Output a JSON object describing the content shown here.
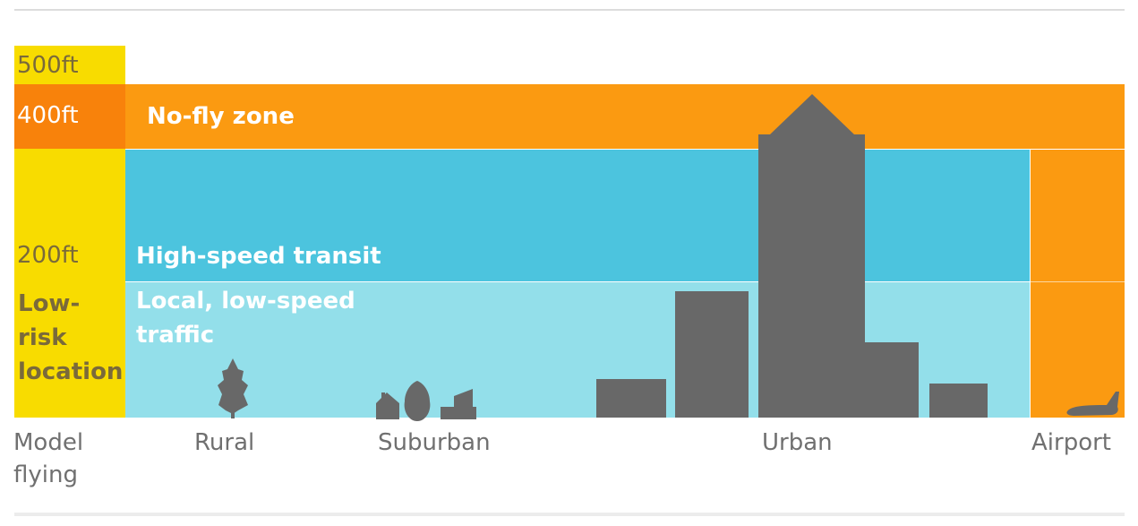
{
  "altitudes": {
    "a500": "500ft",
    "a400": "400ft",
    "a200": "200ft"
  },
  "zones": {
    "no_fly": "No-fly zone",
    "high_speed": "High-speed transit",
    "local": "Local, low-speed traffic",
    "low_risk": "Low-risk location"
  },
  "areas": {
    "model": "Model flying",
    "rural": "Rural",
    "suburban": "Suburban",
    "urban": "Urban",
    "airport": "Airport"
  },
  "colors": {
    "yellow": "#f8dc00",
    "orange": "#fb9a11",
    "orange_dark": "#f8820b",
    "blue_dark": "#4cc4de",
    "blue_light": "#93dfea",
    "buildings": "#686868",
    "text_grey": "#707070",
    "text_olive": "#7a6a3a"
  },
  "icons": [
    "tree-icon",
    "house-icon",
    "bush-icon",
    "shed-icon",
    "airplane-icon"
  ]
}
